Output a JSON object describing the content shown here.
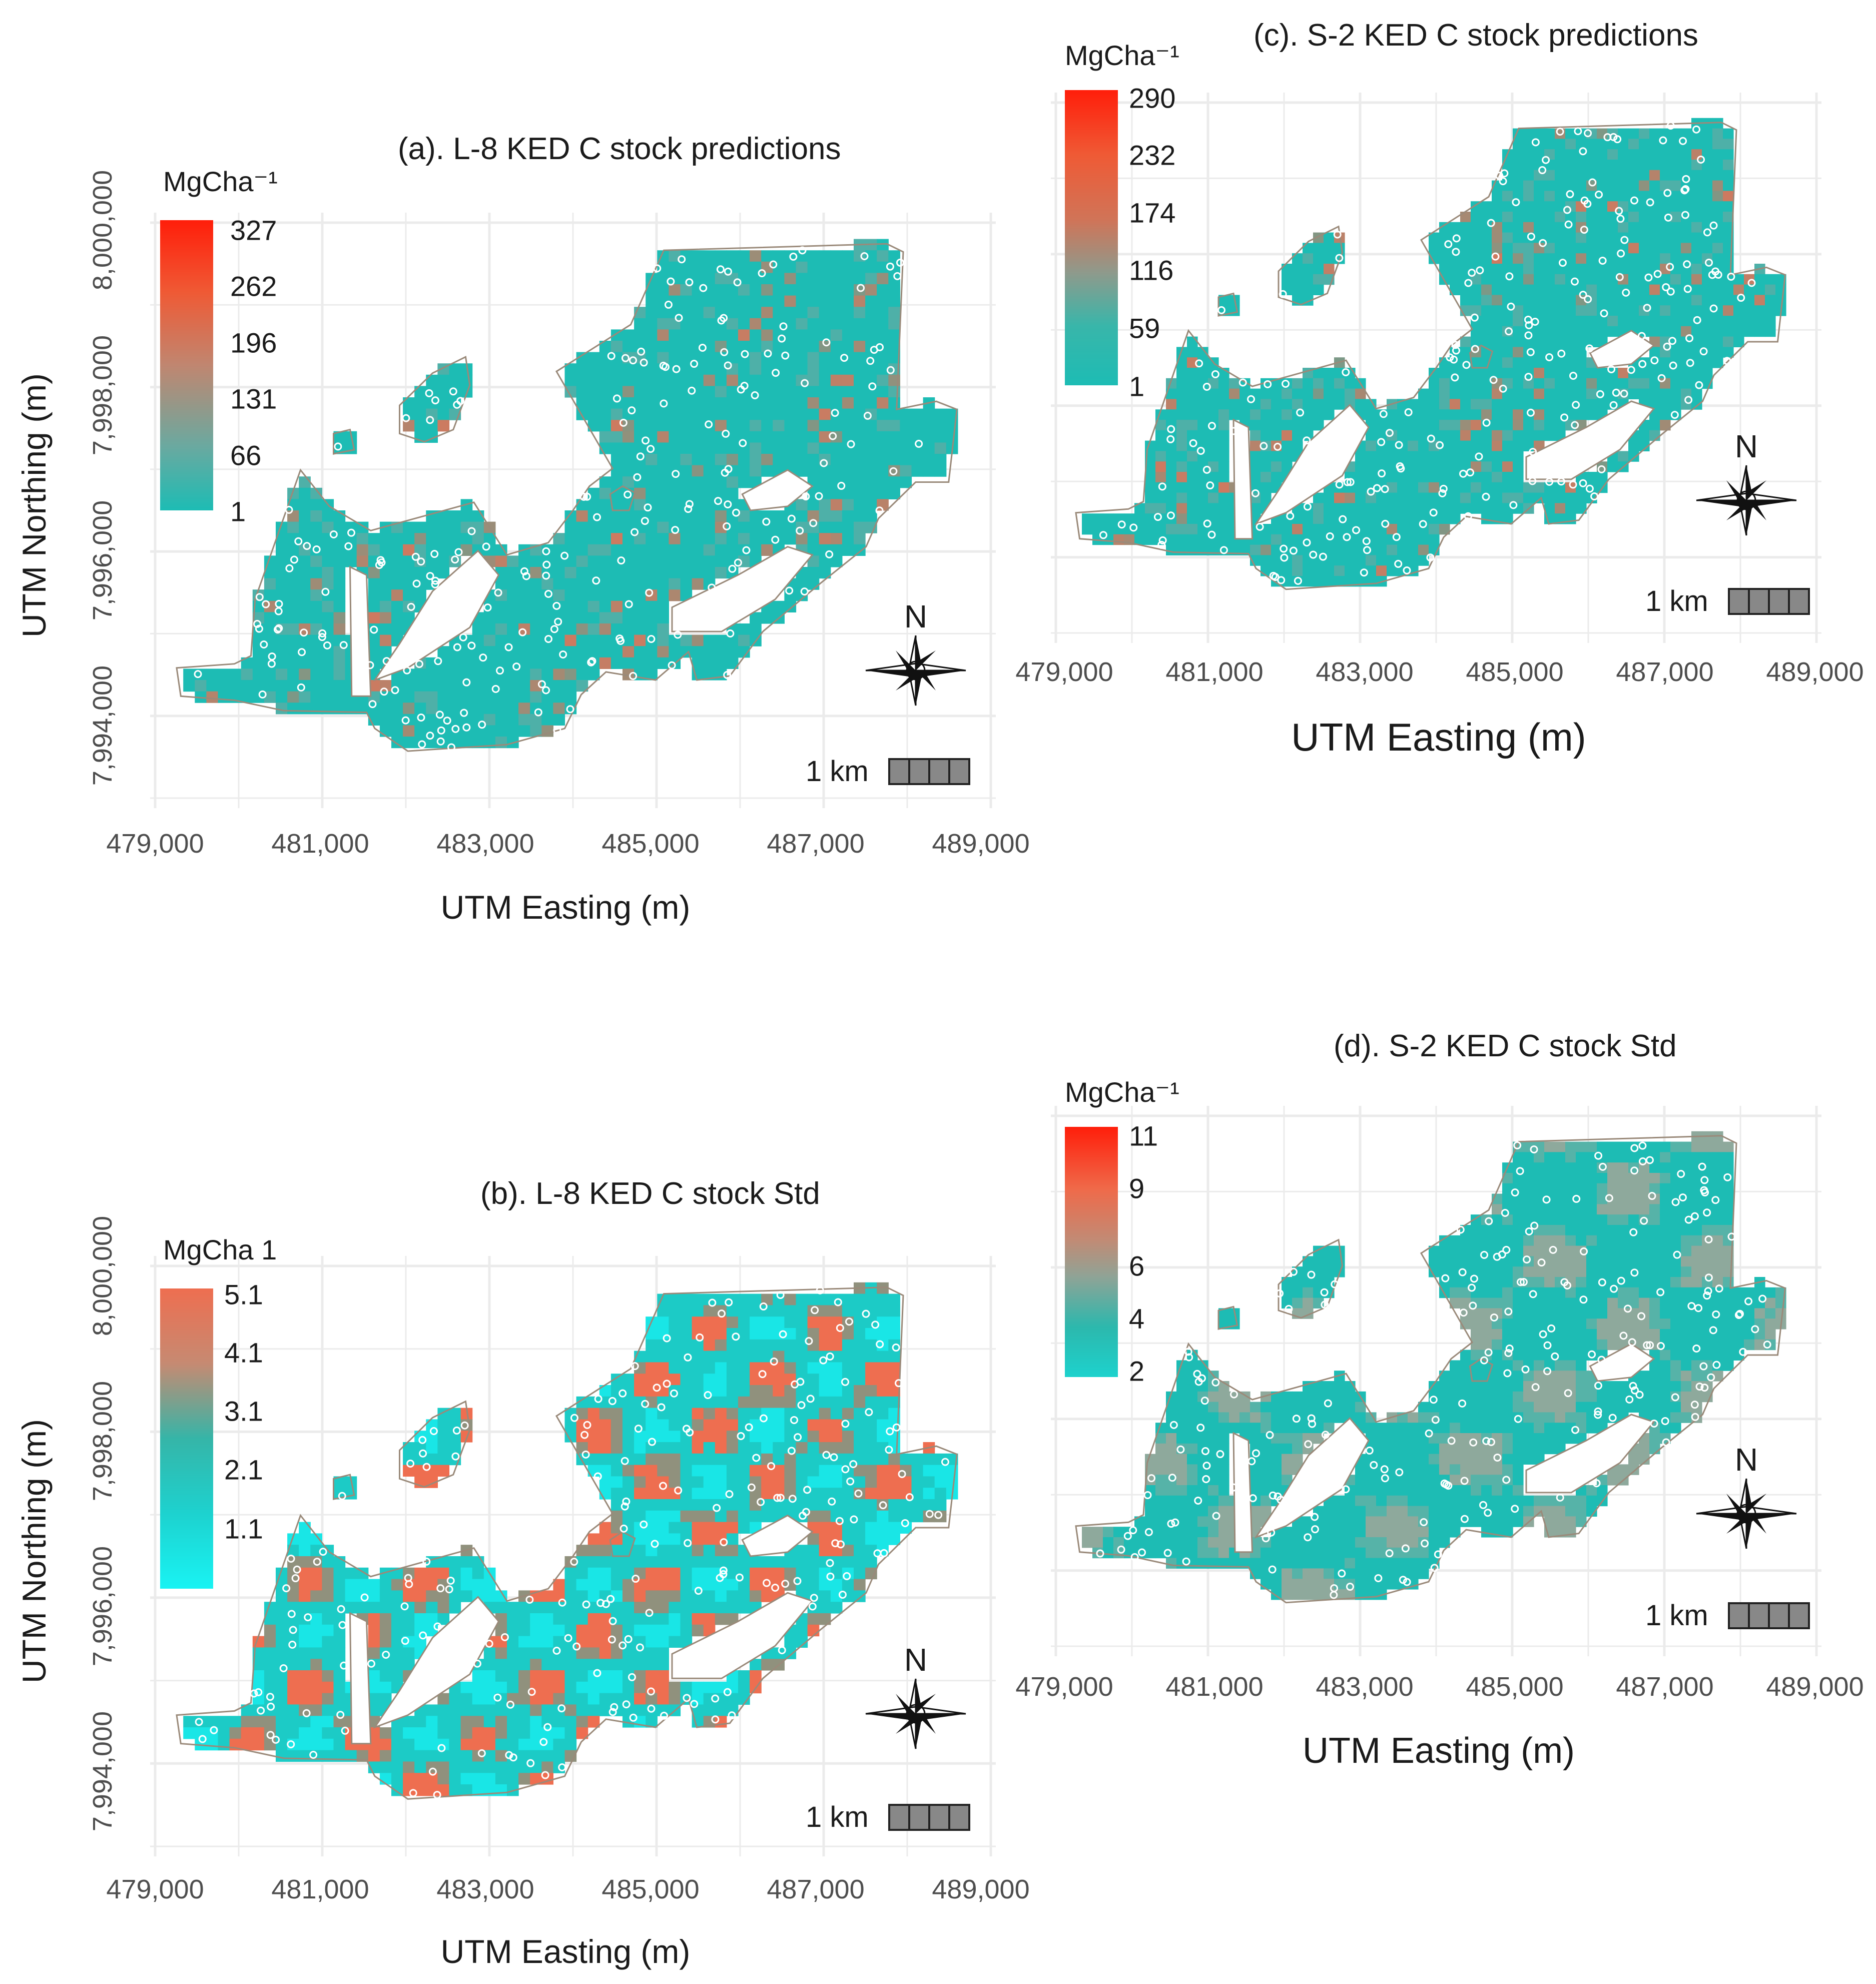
{
  "figure": {
    "axis_x_label": "UTM Easting (m)",
    "axis_y_label": "UTM Northing (m)",
    "x_ticks": [
      "479,000",
      "481,000",
      "483,000",
      "485,000",
      "487,000",
      "489,000"
    ],
    "y_ticks": [
      "7,994,000",
      "7,996,000",
      "7,998,000",
      "8,000,000"
    ],
    "scale_label": "1 km",
    "north_label": "N",
    "colors": {
      "teal": "#1dbcb4",
      "cyan": "#19e6e6",
      "salmon": "#ee6e50",
      "red": "#ff1e0a",
      "grey": "#8f8f8f",
      "grid": "#ebebeb"
    }
  },
  "panels": [
    {
      "id": "a",
      "title": "(a). L-8 KED C stock predictions",
      "legend_title": "MgCha⁻¹",
      "legend_values": [
        "327",
        "262",
        "196",
        "131",
        "66",
        "1"
      ]
    },
    {
      "id": "b",
      "title": "(b). L-8 KED C stock Std",
      "legend_title": "MgCha 1",
      "legend_values": [
        "5.1",
        "4.1",
        "3.1",
        "2.1",
        "1.1"
      ]
    },
    {
      "id": "c",
      "title": "(c). S-2 KED C stock predictions",
      "legend_title": "MgCha⁻¹",
      "legend_values": [
        "290",
        "232",
        "174",
        "116",
        "59",
        "1"
      ]
    },
    {
      "id": "d",
      "title": "(d). S-2 KED C stock Std",
      "legend_title": "MgCha⁻¹",
      "legend_values": [
        "11",
        "9",
        "6",
        "4",
        "2"
      ]
    }
  ]
}
